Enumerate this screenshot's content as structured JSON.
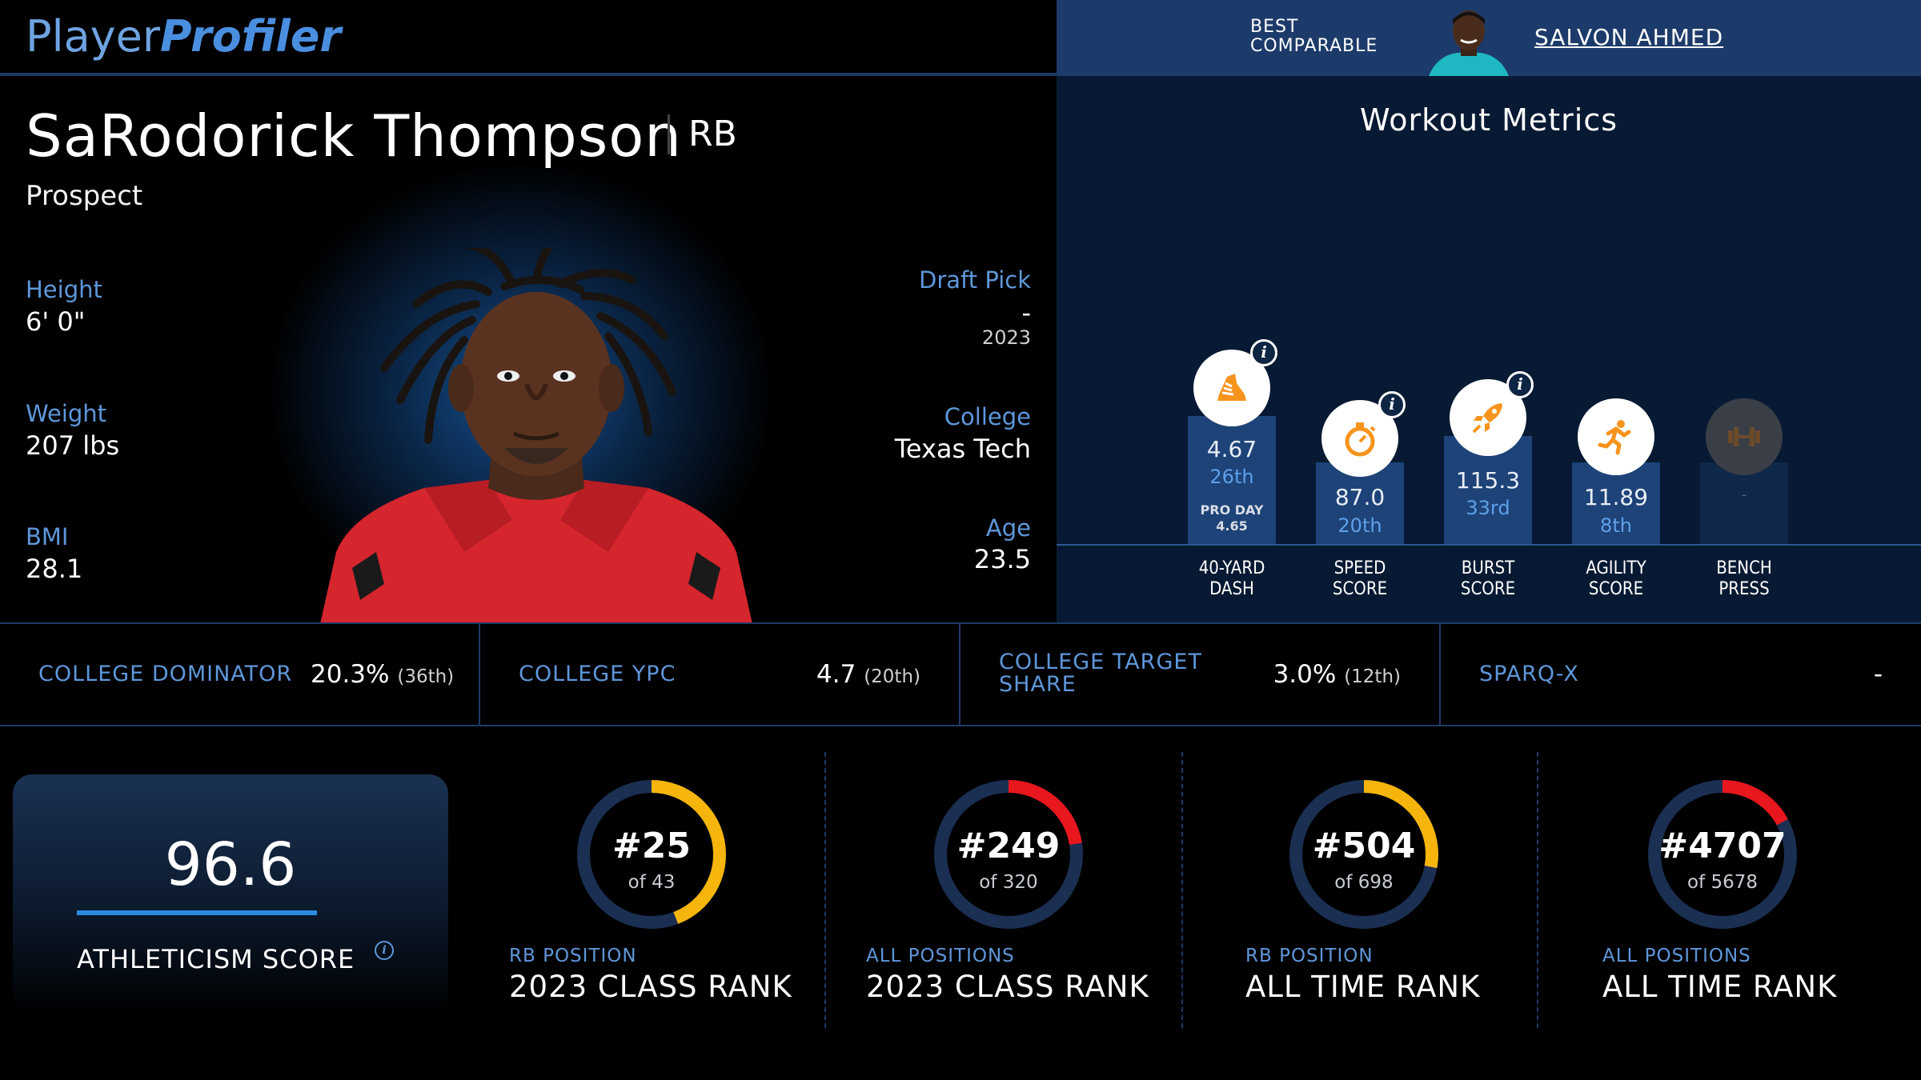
{
  "brand": {
    "part1": "Player",
    "part2": "Profiler"
  },
  "player": {
    "name": "SaRodorick Thompson",
    "position": "RB",
    "status": "Prospect",
    "height": {
      "label": "Height",
      "value": "6' 0\""
    },
    "weight": {
      "label": "Weight",
      "value": "207 lbs"
    },
    "bmi": {
      "label": "BMI",
      "value": "28.1"
    },
    "draft": {
      "label": "Draft Pick",
      "value": "-",
      "year": "2023"
    },
    "college": {
      "label": "College",
      "value": "Texas Tech"
    },
    "age": {
      "label": "Age",
      "value": "23.5"
    }
  },
  "comparable": {
    "label_line1": "BEST",
    "label_line2": "COMPARABLE",
    "name": "SALVON AHMED"
  },
  "workout": {
    "title": "Workout Metrics",
    "metrics": [
      {
        "id": "forty",
        "icon": "running-shoe-icon",
        "value": "4.67",
        "rank": "26th",
        "proday_label": "PRO DAY",
        "proday_value": "4.65",
        "label_line1": "40-YARD",
        "label_line2": "DASH",
        "has_info": true
      },
      {
        "id": "speed",
        "icon": "stopwatch-icon",
        "value": "87.0",
        "rank": "20th",
        "label_line1": "SPEED",
        "label_line2": "SCORE",
        "has_info": true
      },
      {
        "id": "burst",
        "icon": "rocket-icon",
        "value": "115.3",
        "rank": "33rd",
        "label_line1": "BURST",
        "label_line2": "SCORE",
        "has_info": true
      },
      {
        "id": "agility",
        "icon": "runner-icon",
        "value": "11.89",
        "rank": "8th",
        "label_line1": "AGILITY",
        "label_line2": "SCORE",
        "has_info": false
      },
      {
        "id": "bench",
        "icon": "barbell-icon",
        "value": "-",
        "rank": "",
        "label_line1": "BENCH",
        "label_line2": "PRESS",
        "has_info": false
      }
    ]
  },
  "college_stats": [
    {
      "label_line1": "COLLEGE DOMINATOR",
      "label_line2": "",
      "value": "20.3%",
      "rank": "(36th)"
    },
    {
      "label_line1": "COLLEGE YPC",
      "label_line2": "",
      "value": "4.7",
      "rank": "(20th)"
    },
    {
      "label_line1": "COLLEGE TARGET",
      "label_line2": "SHARE",
      "value": "3.0%",
      "rank": "(12th)"
    },
    {
      "label_line1": "SPARQ-X",
      "label_line2": "",
      "value": "-",
      "rank": ""
    }
  ],
  "athleticism": {
    "value": "96.6",
    "label": "ATHLETICISM SCORE",
    "info": "i"
  },
  "ranks": [
    {
      "rank": "#25",
      "of": "of 43",
      "rank_num": 25,
      "total": 43,
      "scope": "RB POSITION",
      "title": "2023 CLASS RANK",
      "color": "#f5b50d"
    },
    {
      "rank": "#249",
      "of": "of 320",
      "rank_num": 249,
      "total": 320,
      "scope": "ALL POSITIONS",
      "title": "2023 CLASS RANK",
      "color": "#e8161d"
    },
    {
      "rank": "#504",
      "of": "of 698",
      "rank_num": 504,
      "total": 698,
      "scope": "RB POSITION",
      "title": "ALL TIME RANK",
      "color": "#f5b50d"
    },
    {
      "rank": "#4707",
      "of": "of 5678",
      "rank_num": 4707,
      "total": 5678,
      "scope": "ALL POSITIONS",
      "title": "ALL TIME RANK",
      "color": "#e8161d"
    }
  ],
  "colors": {
    "accent": "#5e97da",
    "bar": "#1d4378",
    "ring_track": "#1a2f52",
    "icon_orange": "#f7941d"
  }
}
